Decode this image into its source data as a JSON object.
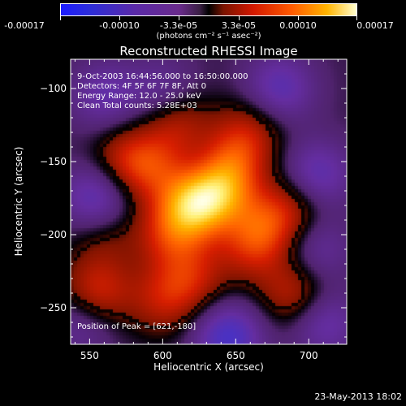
{
  "colorbar": {
    "ticks": [
      "-0.00017",
      "-0.00010",
      "-3.3e-05",
      "3.3e-05",
      "0.00010",
      "0.00017"
    ],
    "unit": "(photons cm⁻² s⁻¹ asec⁻²)",
    "range": [
      -0.00017,
      0.00017
    ]
  },
  "info": {
    "time": "9-Oct-2003 16:44:56.000 to 16:50:00.000",
    "detectors": "Detectors: 4F 5F 6F 7F 8F, Att 0",
    "energy": "Energy Range: 12.0 - 25.0 keV",
    "clean": "Clean     Total counts: 5.28E+03",
    "peak": "Position of Peak = [621,-180]"
  },
  "footer": "23-May-2013 18:02",
  "colors": {
    "background": "#000000",
    "axis": "#ffffff",
    "contour": "#000000"
  },
  "chart_data": {
    "type": "heatmap",
    "title": "Reconstructed RHESSI Image",
    "xlabel": "Heliocentric X (arcsec)",
    "ylabel": "Heliocentric Y (arcsec)",
    "xlim": [
      537,
      726
    ],
    "ylim": [
      -275,
      -80
    ],
    "xticks": [
      550,
      600,
      650,
      700
    ],
    "yticks": [
      -100,
      -150,
      -200,
      -250
    ],
    "colormap": "blue-purple-black-red-yellow-white",
    "peak": [
      621,
      -180
    ],
    "sources": [
      {
        "x": 621,
        "y": -180,
        "amp": 1.0
      },
      {
        "x": 640,
        "y": -170,
        "amp": 0.75
      },
      {
        "x": 645,
        "y": -150,
        "amp": 0.6
      },
      {
        "x": 605,
        "y": -200,
        "amp": 0.55
      },
      {
        "x": 575,
        "y": -150,
        "amp": 0.55
      },
      {
        "x": 595,
        "y": -155,
        "amp": 0.45
      },
      {
        "x": 610,
        "y": -125,
        "amp": 0.5
      },
      {
        "x": 660,
        "y": -130,
        "amp": 0.45
      },
      {
        "x": 620,
        "y": -230,
        "amp": 0.5
      },
      {
        "x": 555,
        "y": -240,
        "amp": 0.65
      },
      {
        "x": 600,
        "y": -245,
        "amp": 0.45
      },
      {
        "x": 670,
        "y": -195,
        "amp": 0.55
      },
      {
        "x": 690,
        "y": -180,
        "amp": 0.45
      },
      {
        "x": 690,
        "y": -240,
        "amp": 0.55
      },
      {
        "x": 660,
        "y": -210,
        "amp": 0.4
      },
      {
        "x": 560,
        "y": -200,
        "amp": 0.3
      },
      {
        "x": 680,
        "y": -100,
        "amp": -0.55
      },
      {
        "x": 705,
        "y": -160,
        "amp": -0.6
      },
      {
        "x": 555,
        "y": -175,
        "amp": -0.65
      },
      {
        "x": 600,
        "y": -102,
        "amp": -0.35
      },
      {
        "x": 645,
        "y": -270,
        "amp": -0.75
      },
      {
        "x": 710,
        "y": -260,
        "amp": -0.5
      },
      {
        "x": 560,
        "y": -105,
        "amp": -0.45
      },
      {
        "x": 545,
        "y": -260,
        "amp": -0.4
      },
      {
        "x": 705,
        "y": -210,
        "amp": -0.4
      },
      {
        "x": 630,
        "y": -150,
        "amp": -0.25
      }
    ]
  }
}
